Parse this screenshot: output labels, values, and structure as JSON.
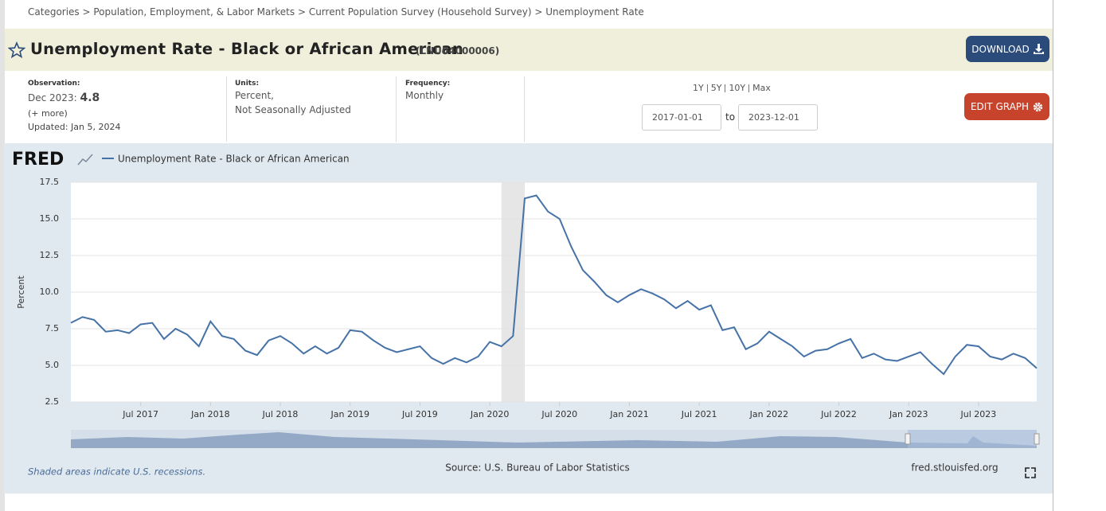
{
  "breadcrumb": "Categories > Population, Employment, & Labor Markets > Current Population Survey (Household Survey) > Unemployment Rate",
  "header": {
    "title": "Unemployment Rate - Black or African American",
    "series_id": "(LNU04000006)",
    "download": "DOWNLOAD"
  },
  "info": {
    "observation_label": "Observation:",
    "observation_date": "Dec 2023:",
    "observation_value": 4.8,
    "more": "(+ more)",
    "updated": "Updated: Jan 5, 2024",
    "units_label": "Units:",
    "units": [
      "Percent,",
      "Not Seasonally Adjusted"
    ],
    "frequency_label": "Frequency:",
    "frequency": "Monthly"
  },
  "range": {
    "presets": [
      "1Y",
      "5Y",
      "10Y",
      "Max"
    ],
    "start": "2017-01-01",
    "to": "to",
    "end": "2023-12-01",
    "edit": "EDIT GRAPH"
  },
  "chart_data": {
    "type": "line",
    "logo": "FRED",
    "ylabel": "Percent",
    "x": [
      "2017-01",
      "2017-02",
      "2017-03",
      "2017-04",
      "2017-05",
      "2017-06",
      "2017-07",
      "2017-08",
      "2017-09",
      "2017-10",
      "2017-11",
      "2017-12",
      "2018-01",
      "2018-02",
      "2018-03",
      "2018-04",
      "2018-05",
      "2018-06",
      "2018-07",
      "2018-08",
      "2018-09",
      "2018-10",
      "2018-11",
      "2018-12",
      "2019-01",
      "2019-02",
      "2019-03",
      "2019-04",
      "2019-05",
      "2019-06",
      "2019-07",
      "2019-08",
      "2019-09",
      "2019-10",
      "2019-11",
      "2019-12",
      "2020-01",
      "2020-02",
      "2020-03",
      "2020-04",
      "2020-05",
      "2020-06",
      "2020-07",
      "2020-08",
      "2020-09",
      "2020-10",
      "2020-11",
      "2020-12",
      "2021-01",
      "2021-02",
      "2021-03",
      "2021-04",
      "2021-05",
      "2021-06",
      "2021-07",
      "2021-08",
      "2021-09",
      "2021-10",
      "2021-11",
      "2021-12",
      "2022-01",
      "2022-02",
      "2022-03",
      "2022-04",
      "2022-05",
      "2022-06",
      "2022-07",
      "2022-08",
      "2022-09",
      "2022-10",
      "2022-11",
      "2022-12",
      "2023-01",
      "2023-02",
      "2023-03",
      "2023-04",
      "2023-05",
      "2023-06",
      "2023-07",
      "2023-08",
      "2023-09",
      "2023-10",
      "2023-11",
      "2023-12"
    ],
    "series": [
      {
        "name": "Unemployment Rate - Black or African American",
        "color": "#4572a7",
        "values": [
          7.9,
          8.3,
          8.1,
          7.3,
          7.4,
          7.2,
          7.8,
          7.9,
          6.8,
          7.5,
          7.1,
          6.3,
          8.0,
          7.0,
          6.8,
          6.0,
          5.7,
          6.7,
          7.0,
          6.5,
          5.8,
          6.3,
          5.8,
          6.2,
          7.4,
          7.3,
          6.7,
          6.2,
          5.9,
          6.1,
          6.3,
          5.5,
          5.1,
          5.5,
          5.2,
          5.6,
          6.6,
          6.3,
          7.0,
          16.4,
          16.6,
          15.5,
          15.0,
          13.1,
          11.5,
          10.7,
          9.8,
          9.3,
          9.8,
          10.2,
          9.9,
          9.5,
          8.9,
          9.4,
          8.8,
          9.1,
          7.4,
          7.6,
          6.1,
          6.5,
          7.3,
          6.8,
          6.3,
          5.6,
          6.0,
          6.1,
          6.5,
          6.8,
          5.5,
          5.8,
          5.4,
          5.3,
          5.6,
          5.9,
          5.1,
          4.4,
          5.6,
          6.4,
          6.3,
          5.6,
          5.4,
          5.8,
          5.5,
          4.8
        ]
      }
    ],
    "recessions": [
      [
        "2020-02",
        "2020-04"
      ]
    ],
    "xlim": [
      "2017-01",
      "2023-12"
    ],
    "xticks": [
      {
        "value": "2017-07",
        "label": "Jul 2017"
      },
      {
        "value": "2018-01",
        "label": "Jan 2018"
      },
      {
        "value": "2018-07",
        "label": "Jul 2018"
      },
      {
        "value": "2019-01",
        "label": "Jan 2019"
      },
      {
        "value": "2019-07",
        "label": "Jul 2019"
      },
      {
        "value": "2020-01",
        "label": "Jan 2020"
      },
      {
        "value": "2020-07",
        "label": "Jul 2020"
      },
      {
        "value": "2021-01",
        "label": "Jan 2021"
      },
      {
        "value": "2021-07",
        "label": "Jul 2021"
      },
      {
        "value": "2022-01",
        "label": "Jan 2022"
      },
      {
        "value": "2022-07",
        "label": "Jul 2022"
      },
      {
        "value": "2023-01",
        "label": "Jan 2023"
      },
      {
        "value": "2023-07",
        "label": "Jul 2023"
      }
    ],
    "ylim": [
      2.5,
      17.5
    ],
    "yticks": [
      2.5,
      {
        "value": 5,
        "label": "5.0"
      },
      7.5,
      {
        "value": 10,
        "label": "10.0"
      },
      12.5,
      {
        "value": 15,
        "label": "15.0"
      },
      17.5
    ],
    "grid": true,
    "note": "Shaded areas indicate U.S. recessions.",
    "source": "Source: U.S. Bureau of Labor Statistics",
    "url": "fred.stlouisfed.org"
  }
}
